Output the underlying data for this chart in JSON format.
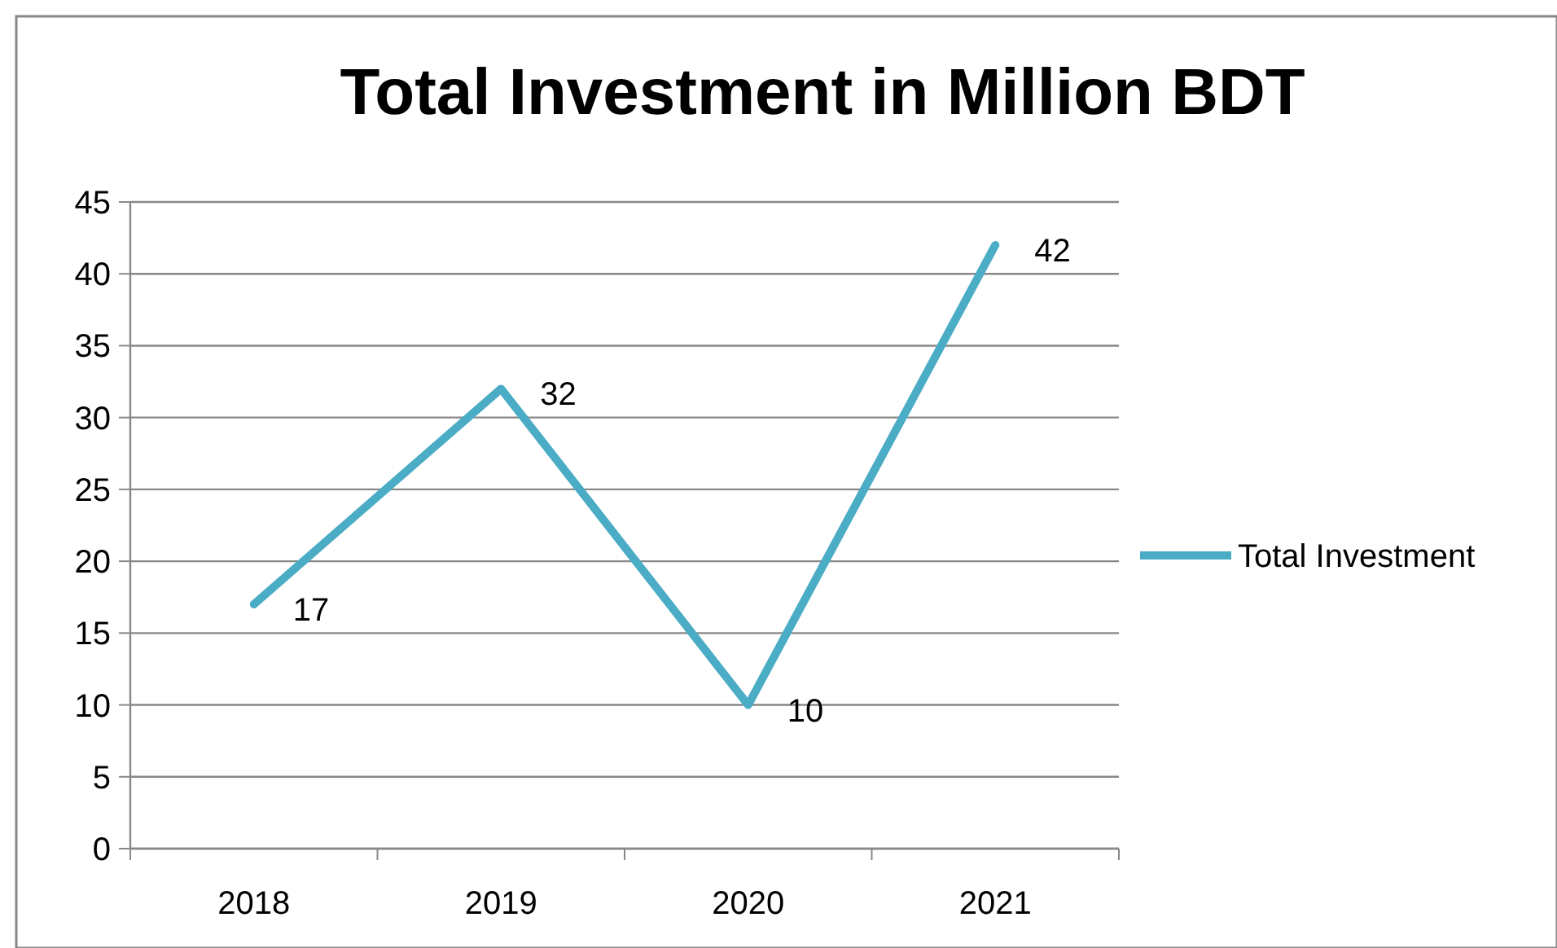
{
  "chart_data": {
    "type": "line",
    "title": "Total Investment in Million BDT",
    "categories": [
      "2018",
      "2019",
      "2020",
      "2021"
    ],
    "series": [
      {
        "name": "Total Investment",
        "color": "#4bacc6",
        "values": [
          17,
          32,
          10,
          42
        ]
      }
    ],
    "ylim": [
      0,
      45
    ],
    "yticks": [
      0,
      5,
      10,
      15,
      20,
      25,
      30,
      35,
      40,
      45
    ],
    "grid": "y",
    "legend": "right",
    "data_labels": true,
    "marker": "none",
    "line_style": "solid"
  }
}
